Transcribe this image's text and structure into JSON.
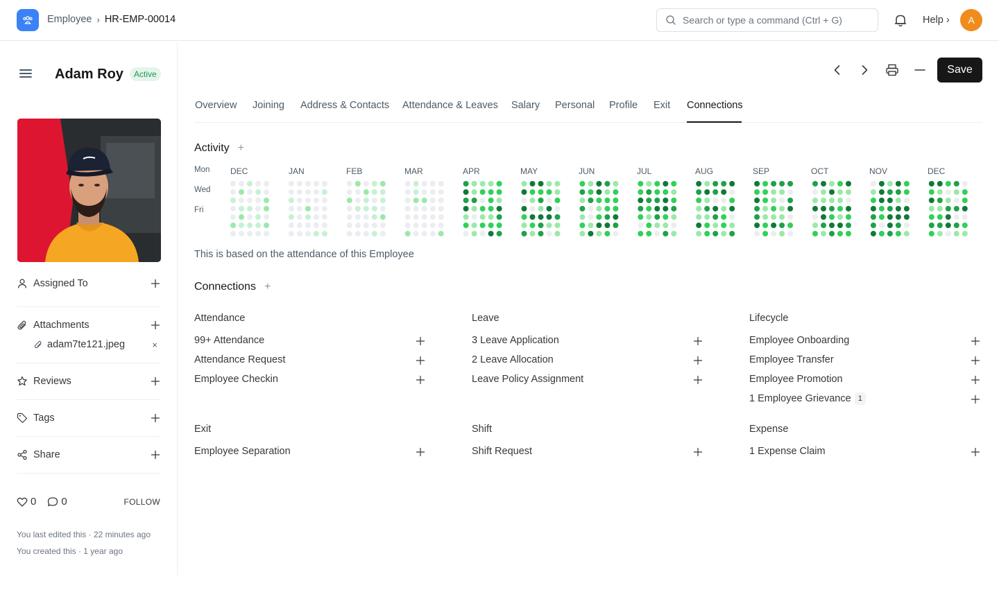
{
  "navbar": {
    "breadcrumb_parent": "Employee",
    "breadcrumb_separator": "›",
    "breadcrumb_current": "HR-EMP-00014",
    "search_placeholder": "Search or type a command (Ctrl + G)",
    "help_label": "Help ›",
    "avatar_initial": "A"
  },
  "sidebar": {
    "employee_name": "Adam Roy",
    "status": "Active",
    "assigned_to_label": "Assigned To",
    "attachments_label": "Attachments",
    "attachment_file": "adam7te121.jpeg",
    "attachment_remove": "×",
    "reviews_label": "Reviews",
    "tags_label": "Tags",
    "share_label": "Share",
    "likes_count": "0",
    "comments_count": "0",
    "follow_label": "FOLLOW",
    "last_edited": "You last edited this · 22 minutes ago",
    "created": "You created this · 1 year ago"
  },
  "toolbar": {
    "save_label": "Save"
  },
  "tabs": [
    "Overview",
    "Joining",
    "Address & Contacts",
    "Attendance & Leaves",
    "Salary",
    "Personal",
    "Profile",
    "Exit",
    "Connections"
  ],
  "active_tab": "Connections",
  "activity": {
    "title": "Activity",
    "add_symbol": "+",
    "row_labels": [
      "Mon",
      "Wed",
      "Fri"
    ],
    "months": [
      "DEC",
      "JAN",
      "FEB",
      "MAR",
      "APR",
      "MAY",
      "JUN",
      "JUL",
      "AUG",
      "SEP",
      "OCT",
      "NOV",
      "DEC"
    ],
    "note": "This is based on the attendance of this Employee",
    "colors": {
      "empty": "#ebedf0",
      "level1": "#c6f1d3",
      "level2": "#9be9a8",
      "level3": "#30d158",
      "level4": "#1fa14a",
      "level5": "#0f7a38"
    }
  },
  "connections": {
    "title": "Connections",
    "add_symbol": "+",
    "groups": [
      {
        "title": "Attendance",
        "items": [
          {
            "label": "99+ Attendance"
          },
          {
            "label": "Attendance Request"
          },
          {
            "label": "Employee Checkin"
          }
        ]
      },
      {
        "title": "Leave",
        "items": [
          {
            "label": "3 Leave Application"
          },
          {
            "label": "2 Leave Allocation"
          },
          {
            "label": "Leave Policy Assignment"
          }
        ]
      },
      {
        "title": "Lifecycle",
        "items": [
          {
            "label": "Employee Onboarding"
          },
          {
            "label": "Employee Transfer"
          },
          {
            "label": "Employee Promotion"
          },
          {
            "label": "1 Employee Grievance",
            "badge": "1"
          }
        ]
      },
      {
        "title": "Exit",
        "items": [
          {
            "label": "Employee Separation"
          }
        ]
      },
      {
        "title": "Shift",
        "items": [
          {
            "label": "Shift Request"
          }
        ]
      },
      {
        "title": "Expense",
        "items": [
          {
            "label": "1 Expense Claim"
          }
        ]
      }
    ]
  }
}
